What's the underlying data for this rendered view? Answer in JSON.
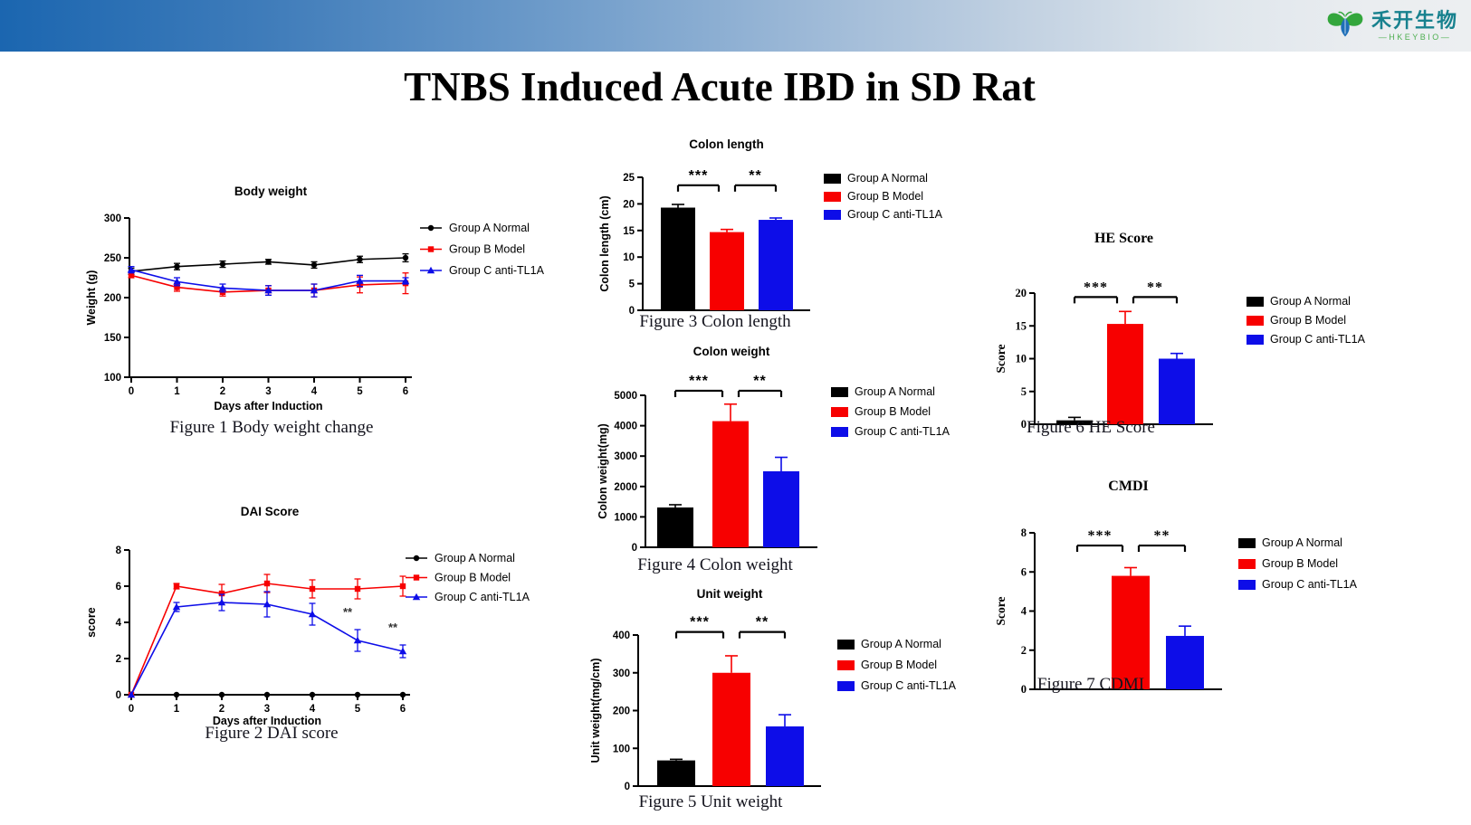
{
  "page": {
    "title": "TNBS Induced Acute IBD in SD Rat"
  },
  "logo": {
    "cn": "禾开生物",
    "en": "—HKEYBIO—",
    "teal": "#17818E",
    "green": "#4FAF51",
    "leaf_green": "#33A63C",
    "drop_blue": "#1E6FB8"
  },
  "groups": [
    "Group A Normal",
    "Group B Model",
    "Group C anti-TL1A"
  ],
  "colors": {
    "groupA": "#000000",
    "groupB": "#F70000",
    "groupC": "#0D0DE8"
  },
  "chart_data": [
    {
      "type": "line",
      "font": "sans",
      "title": "Body weight",
      "xlabel": "Days after Induction",
      "ylabel": "Weight (g)",
      "x": [
        0,
        1,
        2,
        3,
        4,
        5,
        6
      ],
      "ylim": [
        100,
        300
      ],
      "yticks": [
        100,
        150,
        200,
        250,
        300
      ],
      "legend_position": "right",
      "series": [
        {
          "name": "Group A Normal",
          "color": "#000000",
          "marker": "circle",
          "values": [
            233,
            239,
            242,
            245,
            241,
            248,
            250
          ],
          "errors": [
            4,
            4,
            4,
            3,
            4,
            4,
            5
          ]
        },
        {
          "name": "Group B Model",
          "color": "#F70000",
          "marker": "square",
          "values": [
            228,
            213,
            207,
            209,
            209,
            216,
            218
          ],
          "errors": [
            3,
            5,
            5,
            6,
            8,
            10,
            13
          ]
        },
        {
          "name": "Group C anti-TL1A",
          "color": "#0D0DE8",
          "marker": "triangle",
          "values": [
            235,
            220,
            212,
            209,
            209,
            221,
            221
          ],
          "errors": [
            4,
            5,
            5,
            6,
            8,
            7,
            4
          ]
        }
      ],
      "caption": "Figure 1 Body  weight change"
    },
    {
      "type": "line",
      "font": "sans",
      "title": "DAI Score",
      "xlabel": "Days after Induction",
      "ylabel": "score",
      "x": [
        0,
        1,
        2,
        3,
        4,
        5,
        6
      ],
      "ylim": [
        0,
        8
      ],
      "yticks": [
        0,
        2,
        4,
        6,
        8
      ],
      "legend_position": "right",
      "series": [
        {
          "name": "Group A Normal",
          "color": "#000000",
          "marker": "circle",
          "values": [
            0,
            0,
            0,
            0,
            0,
            0,
            0
          ],
          "errors": [
            0,
            0,
            0,
            0,
            0,
            0,
            0
          ]
        },
        {
          "name": "Group B Model",
          "color": "#F70000",
          "marker": "square",
          "values": [
            0,
            6.0,
            5.6,
            6.15,
            5.85,
            5.85,
            6.0
          ],
          "errors": [
            0,
            0.15,
            0.5,
            0.5,
            0.5,
            0.55,
            0.55
          ]
        },
        {
          "name": "Group C anti-TL1A",
          "color": "#0D0DE8",
          "marker": "triangle",
          "values": [
            0,
            4.85,
            5.1,
            5.0,
            4.45,
            3.0,
            2.4
          ],
          "errors": [
            0,
            0.25,
            0.45,
            0.7,
            0.6,
            0.6,
            0.35
          ]
        }
      ],
      "annotations": [
        {
          "x": 4.78,
          "y": 4.35,
          "text": "**"
        },
        {
          "x": 5.78,
          "y": 3.5,
          "text": "**"
        }
      ],
      "caption": "Figure 2 DAI score"
    },
    {
      "type": "bar",
      "font": "sans",
      "title": "Colon length",
      "ylabel": "Colon length (cm)",
      "categories": [
        "Group A Normal",
        "Group B Model",
        "Group C anti-TL1A"
      ],
      "colors": [
        "#000000",
        "#F70000",
        "#0D0DE8"
      ],
      "values": [
        19.3,
        14.7,
        17.0
      ],
      "errors": [
        0.6,
        0.5,
        0.35
      ],
      "ylim": [
        0,
        25
      ],
      "yticks": [
        0,
        5,
        10,
        15,
        20,
        25
      ],
      "sig": [
        {
          "from": 0,
          "to": 1,
          "label": "***",
          "y": 23.5
        },
        {
          "from": 1,
          "to": 2,
          "label": "**",
          "y": 23.5
        }
      ],
      "caption": "Figure 3 Colon length"
    },
    {
      "type": "bar",
      "font": "sans",
      "title": "Colon  weight",
      "ylabel": "Colon  weight(mg)",
      "categories": [
        "Group A Normal",
        "Group B Model",
        "Group C anti-TL1A"
      ],
      "colors": [
        "#000000",
        "#F70000",
        "#0D0DE8"
      ],
      "values": [
        1310,
        4150,
        2500
      ],
      "errors": [
        90,
        560,
        460
      ],
      "ylim": [
        0,
        5000
      ],
      "yticks": [
        0,
        1000,
        2000,
        3000,
        4000,
        5000
      ],
      "sig": [
        {
          "from": 0,
          "to": 1,
          "label": "***",
          "y": 5150
        },
        {
          "from": 1,
          "to": 2,
          "label": "**",
          "y": 5150
        }
      ],
      "caption": "Figure 4 Colon weight"
    },
    {
      "type": "bar",
      "font": "sans",
      "title": "Unit weight",
      "ylabel": "Unit weight(mg/cm)",
      "categories": [
        "Group A Normal",
        "Group B Model",
        "Group C anti-TL1A"
      ],
      "colors": [
        "#000000",
        "#F70000",
        "#0D0DE8"
      ],
      "values": [
        68,
        300,
        158
      ],
      "errors": [
        3,
        45,
        31
      ],
      "ylim": [
        0,
        400
      ],
      "yticks": [
        0,
        100,
        200,
        300,
        400
      ],
      "sig": [
        {
          "from": 0,
          "to": 1,
          "label": "***",
          "y": 408
        },
        {
          "from": 1,
          "to": 2,
          "label": "**",
          "y": 408
        }
      ],
      "caption": "Figure 5 Unit weight"
    },
    {
      "type": "bar",
      "font": "serif",
      "title": "HE Score",
      "ylabel": "Score",
      "categories": [
        "Group A Normal",
        "Group B Model",
        "Group C anti-TL1A"
      ],
      "colors": [
        "#000000",
        "#F70000",
        "#0D0DE8"
      ],
      "values": [
        0.6,
        15.3,
        10.0
      ],
      "errors": [
        0.45,
        1.9,
        0.8
      ],
      "ylim": [
        0,
        20
      ],
      "yticks": [
        0,
        5,
        10,
        15,
        20
      ],
      "sig": [
        {
          "from": 0,
          "to": 1,
          "label": "***",
          "y": 19.4
        },
        {
          "from": 1,
          "to": 2,
          "label": "**",
          "y": 19.4
        }
      ],
      "caption": "Figure 6 HE Score"
    },
    {
      "type": "bar",
      "font": "serif",
      "title": "CMDI",
      "ylabel": "Score",
      "categories": [
        "Group A Normal",
        "Group B Model",
        "Group C anti-TL1A"
      ],
      "colors": [
        "#000000",
        "#F70000",
        "#0D0DE8"
      ],
      "values": [
        0,
        5.8,
        2.73
      ],
      "errors": [
        0,
        0.42,
        0.5
      ],
      "ylim": [
        0,
        8
      ],
      "yticks": [
        0,
        2,
        4,
        6,
        8
      ],
      "sig": [
        {
          "from": 0,
          "to": 1,
          "label": "***",
          "y": 7.35
        },
        {
          "from": 1,
          "to": 2,
          "label": "**",
          "y": 7.35
        }
      ],
      "caption": "Figure 7 CDMI"
    }
  ]
}
